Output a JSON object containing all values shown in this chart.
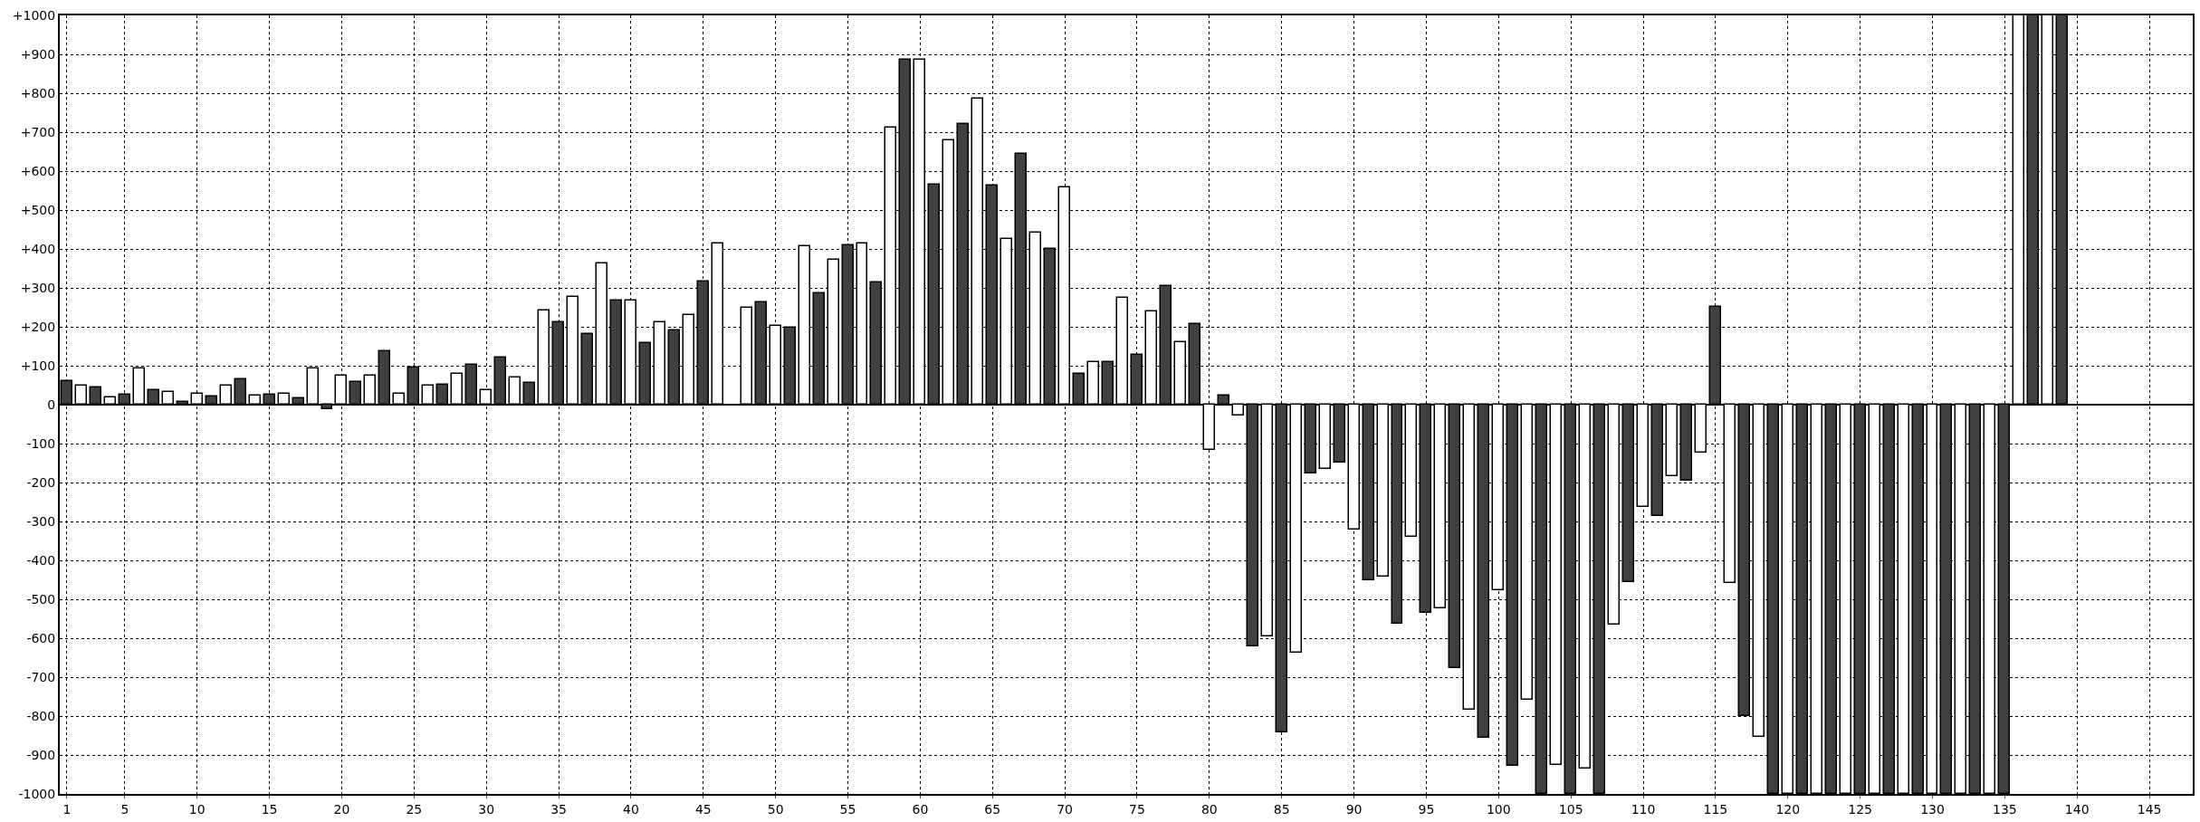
{
  "chart_data": {
    "type": "bar",
    "xlim": [
      0.5,
      148
    ],
    "xticks": [
      1,
      5,
      10,
      15,
      20,
      25,
      30,
      35,
      40,
      45,
      50,
      55,
      60,
      65,
      70,
      75,
      80,
      85,
      90,
      95,
      100,
      105,
      110,
      115,
      120,
      125,
      130,
      135,
      140,
      145
    ],
    "ylim": [
      -1000,
      1000
    ],
    "yticks": [
      {
        "value": -1000,
        "label": "-1000"
      },
      {
        "value": -900,
        "label": "-900"
      },
      {
        "value": -800,
        "label": "-800"
      },
      {
        "value": -700,
        "label": "-700"
      },
      {
        "value": -600,
        "label": "-600"
      },
      {
        "value": -500,
        "label": "-500"
      },
      {
        "value": -400,
        "label": "-400"
      },
      {
        "value": -300,
        "label": "-300"
      },
      {
        "value": -200,
        "label": "-200"
      },
      {
        "value": -100,
        "label": "-100"
      },
      0,
      {
        "value": 100,
        "label": "+100"
      },
      {
        "value": 200,
        "label": "+200"
      },
      {
        "value": 300,
        "label": "+300"
      },
      {
        "value": 400,
        "label": "+400"
      },
      {
        "value": 500,
        "label": "+500"
      },
      {
        "value": 600,
        "label": "+600"
      },
      {
        "value": 700,
        "label": "+700"
      },
      {
        "value": 800,
        "label": "+800"
      },
      {
        "value": 900,
        "label": "+900"
      },
      {
        "value": 1000,
        "label": "+1000"
      }
    ],
    "grid": true,
    "series": [
      {
        "color": "#404040",
        "x": [
          1,
          3,
          5,
          7,
          9,
          11,
          13,
          15,
          17,
          19,
          21,
          23,
          25,
          27,
          29,
          31,
          33,
          35,
          37,
          39,
          41,
          43,
          45,
          47,
          49,
          51,
          53,
          55,
          57,
          59,
          61,
          63,
          65,
          67,
          69,
          71,
          73,
          75,
          77,
          79,
          81,
          83,
          85,
          87,
          89,
          91,
          93,
          95,
          97,
          99,
          101,
          103,
          105,
          107,
          109,
          111,
          113,
          115,
          117,
          119,
          121,
          123,
          125,
          127,
          129,
          131,
          133,
          135,
          137,
          139
        ],
        "values": [
          61,
          44,
          25,
          38,
          7,
          20,
          66,
          25,
          16,
          -11,
          57,
          138,
          96,
          52,
          102,
          121,
          56,
          212,
          181,
          267,
          157,
          190,
          317,
          null,
          263,
          198,
          286,
          409,
          313,
          886,
          566,
          721,
          562,
          644,
          400,
          80,
          110,
          129,
          304,
          207,
          24,
          -622,
          -842,
          -177,
          -149,
          -452,
          -562,
          -535,
          -676,
          -855,
          -928,
          -1000,
          -1000,
          -1000,
          -455,
          -286,
          -195,
          252,
          -799,
          -1000,
          -1000,
          -1000,
          -1000,
          -1000,
          -1000,
          -1000,
          -1000,
          -1000,
          1000,
          1000
        ]
      },
      {
        "color": "#ffffff",
        "x": [
          2,
          4,
          6,
          8,
          10,
          12,
          14,
          16,
          18,
          20,
          22,
          24,
          26,
          28,
          30,
          32,
          34,
          36,
          38,
          40,
          42,
          44,
          46,
          48,
          50,
          52,
          54,
          56,
          58,
          60,
          62,
          64,
          66,
          68,
          70,
          72,
          74,
          76,
          78,
          80,
          82,
          84,
          86,
          88,
          90,
          92,
          94,
          96,
          98,
          100,
          102,
          104,
          106,
          108,
          110,
          112,
          114,
          116,
          118,
          120,
          122,
          124,
          126,
          128,
          130,
          132,
          134,
          136,
          138
        ],
        "values": [
          50,
          19,
          94,
          32,
          28,
          50,
          24,
          28,
          94,
          74,
          74,
          28,
          50,
          78,
          37,
          69,
          243,
          276,
          363,
          267,
          211,
          230,
          413,
          248,
          202,
          408,
          372,
          413,
          712,
          886,
          679,
          785,
          426,
          441,
          559,
          110,
          275,
          239,
          161,
          -116,
          -28,
          -596,
          -637,
          -166,
          -321,
          -441,
          -340,
          -523,
          -784,
          -477,
          -757,
          -926,
          -936,
          -564,
          -262,
          -183,
          -124,
          -458,
          -853,
          -1000,
          -1000,
          -1000,
          -1000,
          -1000,
          -1000,
          -1000,
          -1000,
          1000,
          1000
        ]
      }
    ]
  }
}
